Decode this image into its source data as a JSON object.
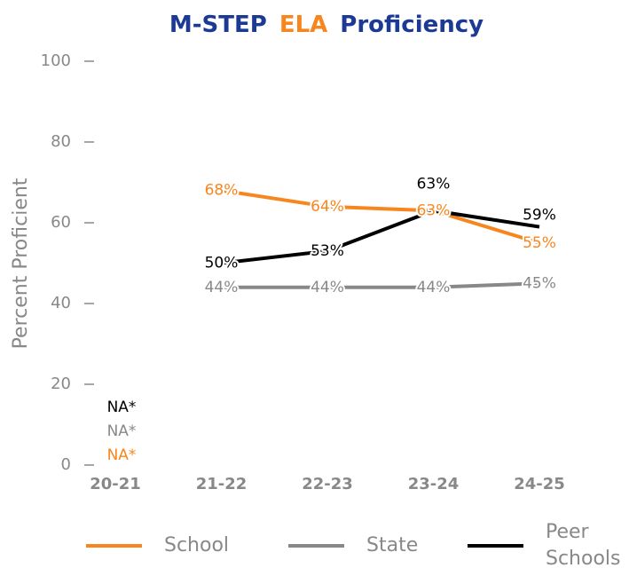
{
  "chart_data": {
    "type": "line",
    "title_parts": [
      {
        "text": "M-STEP",
        "color": "#1c3a94"
      },
      {
        "text": "ELA",
        "color": "#f7861e"
      },
      {
        "text": "Proficiency",
        "color": "#1c3a94"
      }
    ],
    "y_label": "Percent Proficient",
    "categories": [
      "20-21",
      "21-22",
      "22-23",
      "23-24",
      "24-25"
    ],
    "ylim": [
      0,
      100
    ],
    "yticks": [
      0,
      20,
      40,
      60,
      80,
      100
    ],
    "legend": "bottom",
    "series": [
      {
        "name": "School",
        "color": "#f7861e",
        "values": [
          null,
          68,
          64,
          63,
          55
        ],
        "value_labels": [
          "NA*",
          "68%",
          "64%",
          "63%",
          "55%"
        ]
      },
      {
        "name": "State",
        "color": "#888888",
        "values": [
          null,
          44,
          44,
          44,
          45
        ],
        "value_labels": [
          "NA*",
          "44%",
          "44%",
          "44%",
          "45%"
        ]
      },
      {
        "name": "Peer Schools",
        "color": "#000000",
        "values": [
          null,
          50,
          53,
          63,
          59
        ],
        "value_labels": [
          "NA*",
          "50%",
          "53%",
          "63%",
          "59%"
        ]
      }
    ]
  }
}
